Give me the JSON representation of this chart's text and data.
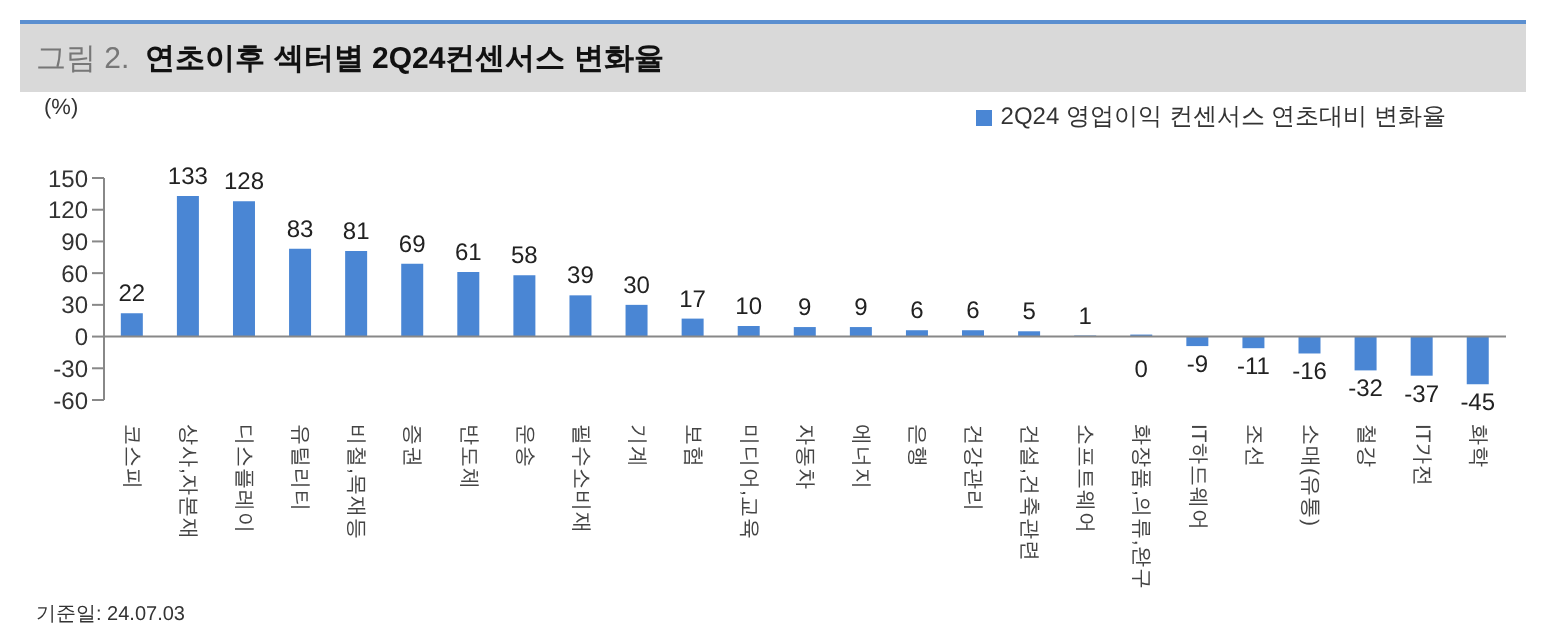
{
  "chart_data": {
    "type": "bar",
    "title": "그림 2.",
    "subtitle": "연초이후 섹터별 2Q24컨센서스 변화율",
    "ylabel": "(%)",
    "categories": [
      "코스피",
      "상사,자본재",
      "디스플레이",
      "유틸리티",
      "비철,목재등",
      "증권",
      "반도체",
      "운송",
      "필수소비재",
      "기계",
      "보험",
      "미디어,교육",
      "자동차",
      "에너지",
      "은행",
      "건강관리",
      "건설,건축관련",
      "소프트웨어",
      "화장품,의류,완구",
      "IT하드웨어",
      "조선",
      "소매(유통)",
      "철강",
      "IT가전",
      "화학"
    ],
    "series": [
      {
        "name": "2Q24 영업이익 컨센서스 연초대비 변화율",
        "color": "#4a86d4",
        "values": [
          22,
          133,
          128,
          83,
          81,
          69,
          61,
          58,
          39,
          30,
          17,
          10,
          9,
          9,
          6,
          6,
          5,
          1,
          0,
          -9,
          -11,
          -16,
          -32,
          -37,
          -45
        ]
      }
    ],
    "ylim": [
      -60,
      150
    ],
    "yticks": [
      -60,
      -30,
      0,
      30,
      60,
      90,
      120,
      150
    ],
    "grid": false,
    "legend": "top right",
    "data_labels": true,
    "ref_lines": [
      {
        "axis": "y",
        "value": 0,
        "color": "#888888"
      }
    ],
    "annotations": [
      "기준일: 24.07.03"
    ]
  }
}
